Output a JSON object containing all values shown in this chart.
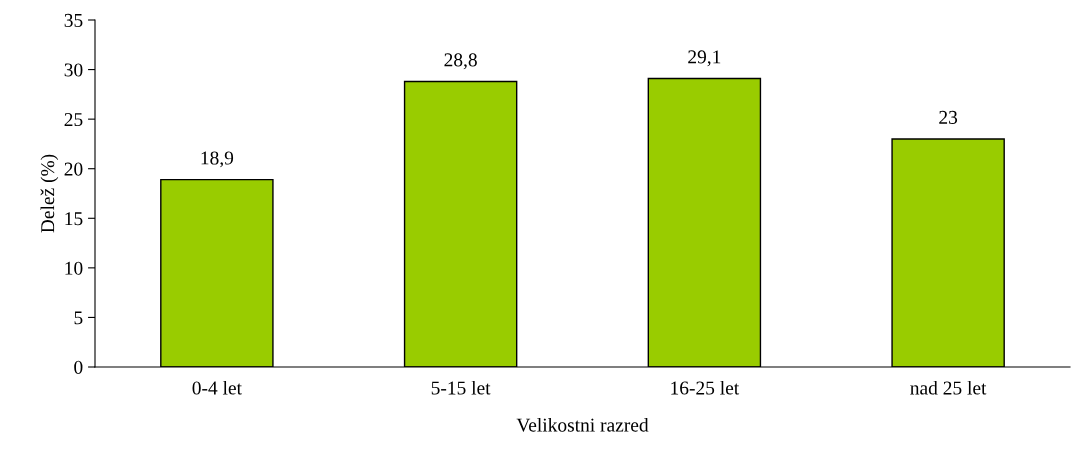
{
  "chart_data": {
    "type": "bar",
    "xlabel": "Velikostni razred",
    "ylabel": "Delež (%)",
    "categories": [
      "0-4 let",
      "5-15 let",
      "16-25 let",
      "nad 25 let"
    ],
    "values": [
      18.9,
      28.8,
      29.1,
      23
    ],
    "value_labels": [
      "18,9",
      "28,8",
      "29,1",
      "23"
    ],
    "color": "#99cc00",
    "ylim": [
      0,
      35
    ],
    "yticks": [
      0,
      5,
      10,
      15,
      20,
      25,
      30,
      35
    ],
    "grid": false,
    "legend": false
  }
}
